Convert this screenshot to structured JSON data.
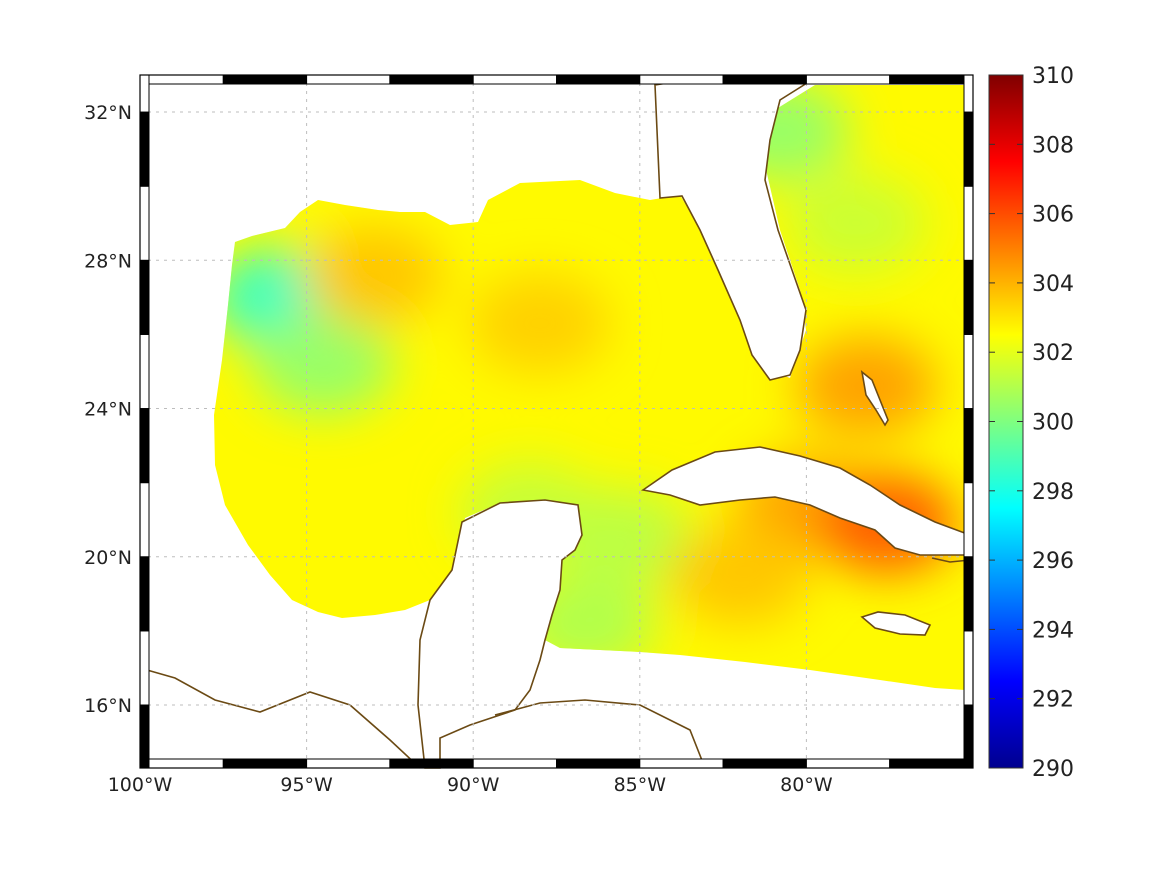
{
  "map": {
    "extent": {
      "lon_min": -100,
      "lon_max": -75,
      "lat_min": 14.3,
      "lat_max": 33
    },
    "x_ticks": [
      {
        "lon": -100,
        "label": "100°W"
      },
      {
        "lon": -95,
        "label": "95°W"
      },
      {
        "lon": -90,
        "label": "90°W"
      },
      {
        "lon": -85,
        "label": "85°W"
      },
      {
        "lon": -80,
        "label": "80°W"
      }
    ],
    "y_ticks": [
      {
        "lat": 32,
        "label": "32°N"
      },
      {
        "lat": 28,
        "label": "28°N"
      },
      {
        "lat": 24,
        "label": "24°N"
      },
      {
        "lat": 20,
        "label": "20°N"
      },
      {
        "lat": 16,
        "label": "16°N"
      }
    ],
    "grid": true,
    "frame_style": "alternating black and white ticks",
    "coastline_color": "#6b4a14",
    "land_color": "#ffffff"
  },
  "colorbar": {
    "min": 290,
    "max": 310,
    "position": "right",
    "colormap": "jet",
    "ticks": [
      {
        "value": 310,
        "label": "310"
      },
      {
        "value": 308,
        "label": "308"
      },
      {
        "value": 306,
        "label": "306"
      },
      {
        "value": 304,
        "label": "304"
      },
      {
        "value": 302,
        "label": "302"
      },
      {
        "value": 300,
        "label": "300"
      },
      {
        "value": 298,
        "label": "298"
      },
      {
        "value": 296,
        "label": "296"
      },
      {
        "value": 294,
        "label": "294"
      },
      {
        "value": 292,
        "label": "292"
      },
      {
        "value": 290,
        "label": "290"
      }
    ]
  },
  "field": {
    "base_value": 302.6,
    "features": [
      {
        "lon": -95.8,
        "lat": 27.0,
        "value": 298.8
      },
      {
        "lon": -94.5,
        "lat": 25.2,
        "value": 300.5
      },
      {
        "lon": -88.3,
        "lat": 21.2,
        "value": 301.4
      },
      {
        "lon": -86.6,
        "lat": 18.2,
        "value": 301.0
      },
      {
        "lon": -85.5,
        "lat": 20.5,
        "value": 301.2
      },
      {
        "lon": -80.8,
        "lat": 31.5,
        "value": 300.5
      },
      {
        "lon": -78.5,
        "lat": 29.0,
        "value": 301.5
      },
      {
        "lon": -93.0,
        "lat": 27.6,
        "value": 303.6
      },
      {
        "lon": -88.0,
        "lat": 26.3,
        "value": 303.4
      },
      {
        "lon": -80.0,
        "lat": 21.4,
        "value": 304.2
      },
      {
        "lon": -77.6,
        "lat": 20.9,
        "value": 305.6
      },
      {
        "lon": -78.2,
        "lat": 24.6,
        "value": 304.3
      },
      {
        "lon": -82.0,
        "lat": 19.5,
        "value": 303.6
      }
    ]
  }
}
